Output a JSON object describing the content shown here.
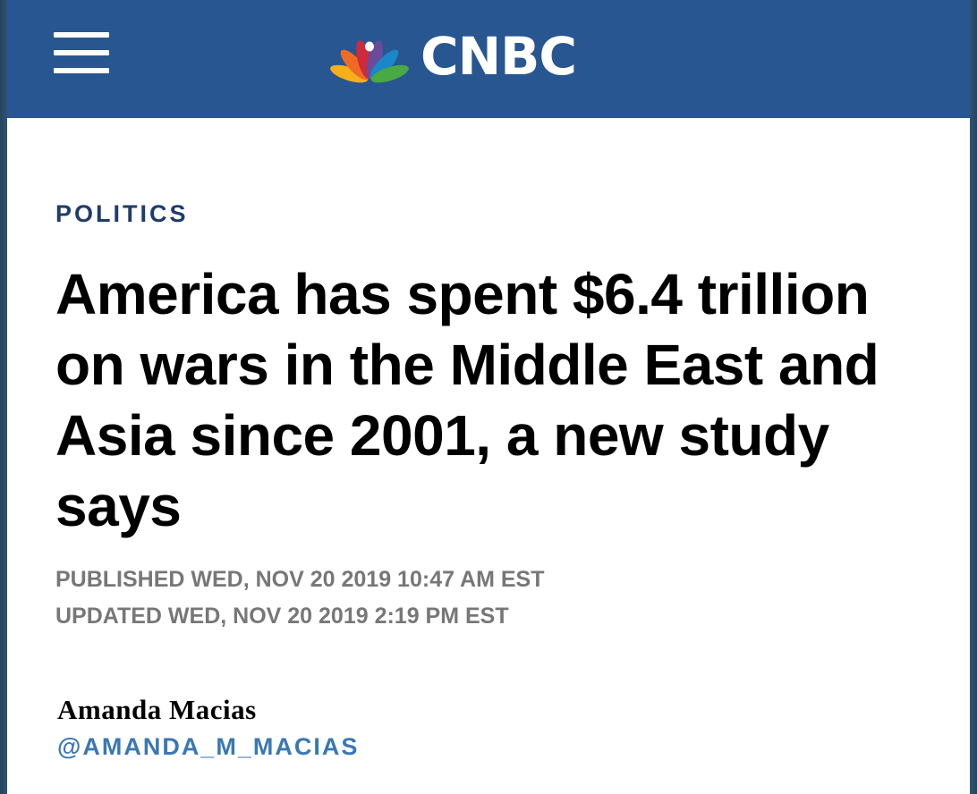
{
  "header": {
    "brand": "CNBC",
    "menu_icon": "hamburger-menu-icon",
    "logo_icon": "nbc-peacock-icon",
    "background_color": "#275691"
  },
  "article": {
    "section": "POLITICS",
    "headline": "America has spent $6.4 trillion on wars in the Middle East and Asia since 2001, a new study says",
    "published": "PUBLISHED WED, NOV 20 2019 10:47 AM EST",
    "updated": "UPDATED WED, NOV 20 2019 2:19 PM EST",
    "author": "Amanda Macias",
    "author_handle": "@AMANDA_M_MACIAS",
    "section_color": "#1f3c6b",
    "handle_color": "#3a78b4"
  }
}
